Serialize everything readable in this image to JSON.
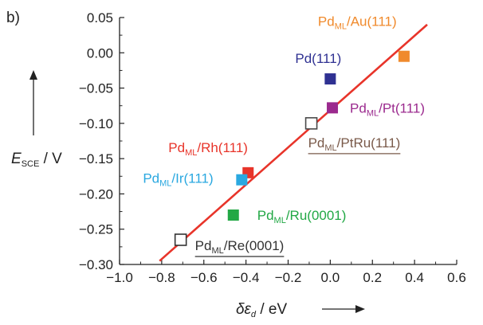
{
  "chart_data": {
    "type": "scatter",
    "panel_label": "b)",
    "xlabel": {
      "main": "δε",
      "sub": "d",
      "unit": " / eV"
    },
    "ylabel": {
      "main": "E",
      "sub": "SCE",
      "unit": " / V"
    },
    "xlim": [
      -1.0,
      0.6
    ],
    "ylim": [
      -0.3,
      0.05
    ],
    "xticks": [
      -1.0,
      -0.8,
      -0.6,
      -0.4,
      -0.2,
      0.0,
      0.2,
      0.4,
      0.6
    ],
    "xtick_labels": [
      "−1.0",
      "−0.8",
      "−0.6",
      "−0.4",
      "−0.2",
      "0.0",
      "0.2",
      "0.4",
      "0.6"
    ],
    "yticks": [
      0.05,
      0.0,
      -0.05,
      -0.1,
      -0.15,
      -0.2,
      -0.25,
      -0.3
    ],
    "ytick_labels": [
      "0.05",
      "0.00",
      "−0.05",
      "−0.10",
      "−0.15",
      "−0.20",
      "−0.25",
      "−0.30"
    ],
    "fit_line": {
      "color": "#e8342a",
      "x": [
        -0.81,
        0.46
      ],
      "y": [
        -0.295,
        0.04
      ]
    },
    "points": [
      {
        "id": "au",
        "x": 0.35,
        "y": -0.005,
        "filled": true,
        "color": "#f08a2c",
        "label_main": "Pd",
        "label_sub": "ML",
        "label_rest": "/Au(111)",
        "label_color": "#f08a2c",
        "underline": false
      },
      {
        "id": "pd",
        "x": 0.0,
        "y": -0.037,
        "filled": true,
        "color": "#2f3192",
        "label_main": "Pd(111)",
        "label_sub": "",
        "label_rest": "",
        "label_color": "#2f3192",
        "underline": false
      },
      {
        "id": "pt",
        "x": 0.01,
        "y": -0.078,
        "filled": true,
        "color": "#9b2a8e",
        "label_main": "Pd",
        "label_sub": "ML",
        "label_rest": "/Pt(111)",
        "label_color": "#9b2a8e",
        "underline": false
      },
      {
        "id": "ptru",
        "x": -0.09,
        "y": -0.1,
        "filled": false,
        "color": "#4a4a4a",
        "label_main": "Pd",
        "label_sub": "ML",
        "label_rest": "/PtRu(111)",
        "label_color": "#7a5a4a",
        "underline": true
      },
      {
        "id": "rh",
        "x": -0.39,
        "y": -0.17,
        "filled": true,
        "color": "#e8342a",
        "label_main": "Pd",
        "label_sub": "ML",
        "label_rest": "/Rh(111)",
        "label_color": "#e8342a",
        "underline": false
      },
      {
        "id": "ir",
        "x": -0.42,
        "y": -0.18,
        "filled": true,
        "color": "#2aa8e0",
        "label_main": "Pd",
        "label_sub": "ML",
        "label_rest": "/Ir(111)",
        "label_color": "#2aa8e0",
        "underline": false
      },
      {
        "id": "ru",
        "x": -0.46,
        "y": -0.23,
        "filled": true,
        "color": "#22a845",
        "label_main": "Pd",
        "label_sub": "ML",
        "label_rest": "/Ru(0001)",
        "label_color": "#22a845",
        "underline": false
      },
      {
        "id": "re",
        "x": -0.71,
        "y": -0.265,
        "filled": false,
        "color": "#333333",
        "label_main": "Pd",
        "label_sub": "ML",
        "label_rest": "/Re(0001)",
        "label_color": "#333333",
        "underline": true
      }
    ]
  }
}
